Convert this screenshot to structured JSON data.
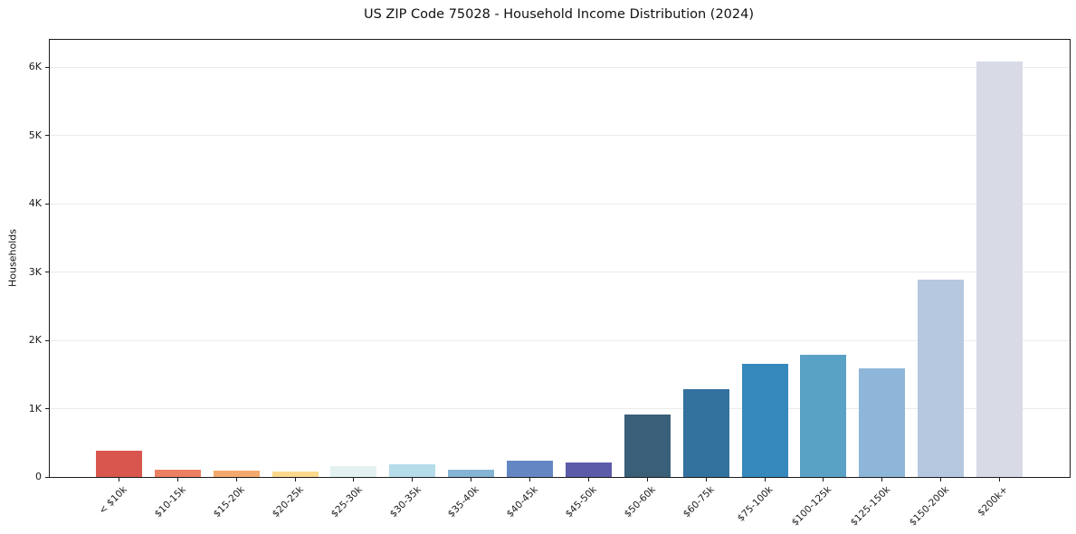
{
  "chart_data": {
    "type": "bar",
    "title": "US ZIP Code 75028 - Household Income Distribution (2024)",
    "xlabel": "",
    "ylabel": "Households",
    "categories": [
      "< $10k",
      "$10-15k",
      "$15-20k",
      "$20-25k",
      "$25-30k",
      "$30-35k",
      "$35-40k",
      "$40-45k",
      "$45-50k",
      "$50-60k",
      "$60-75k",
      "$75-100k",
      "$100-125k",
      "$125-150k",
      "$150-200k",
      "$200k+"
    ],
    "values": [
      390,
      110,
      100,
      85,
      165,
      180,
      110,
      240,
      210,
      920,
      1290,
      1660,
      1790,
      1590,
      2890,
      6080
    ],
    "bar_colors": [
      "#d9564f",
      "#ec8063",
      "#f4a96c",
      "#fad98c",
      "#e4f1f1",
      "#b6dcea",
      "#86b4d5",
      "#6487c3",
      "#5c5ba9",
      "#3a5f78",
      "#33719e",
      "#3689bd",
      "#5aa1c6",
      "#8db6d9",
      "#b5c8e0",
      "#d8dae6"
    ],
    "yticks": [
      {
        "label": "0",
        "value": 0
      },
      {
        "label": "1K",
        "value": 1000
      },
      {
        "label": "2K",
        "value": 2000
      },
      {
        "label": "3K",
        "value": 3000
      },
      {
        "label": "4K",
        "value": 4000
      },
      {
        "label": "5K",
        "value": 5000
      },
      {
        "label": "6K",
        "value": 6000
      }
    ],
    "ylim": [
      0,
      6400
    ],
    "grid": "horizontal-only",
    "legend": "none",
    "background_color": "#ffffff",
    "axis_color": "#1c1c1c",
    "gridline_color": "#ebebeb"
  }
}
